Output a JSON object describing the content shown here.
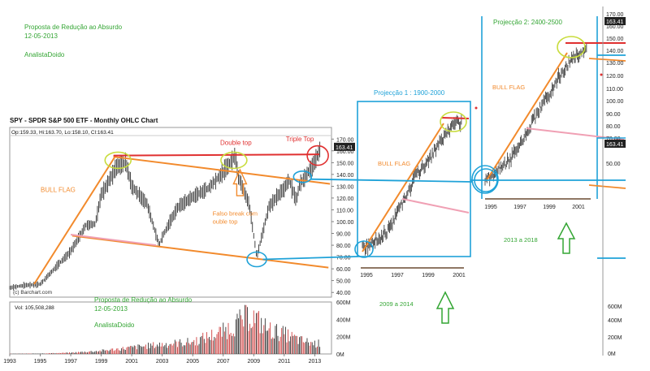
{
  "annotations_top": {
    "title_line1": "Proposta de Redução ao Absurdo",
    "title_line2": "12-05-2013",
    "author": "AnalistaDoido"
  },
  "colors": {
    "green_text": "#33a533",
    "orange": "#f28a2c",
    "red": "#e03030",
    "cyan": "#1fa2d8",
    "pink": "#f0a0b4",
    "yellow_green": "#c8dc3c",
    "price_bar": "#303030",
    "volume_up": "#d04040",
    "volume_down": "#333333"
  },
  "chart_data": [
    {
      "type": "ohlc",
      "title": "SPY - SPDR S&P 500 ETF - Monthly OHLC Chart",
      "ohlc_label": "Op:159.33, Hi:163.70, Lo:158.10, Cl:163.41",
      "last_price_tag": "163.41",
      "source": "(c) Barchart.com",
      "x_ticks": [
        "1993",
        "1995",
        "1997",
        "1999",
        "2001",
        "2003",
        "2005",
        "2007",
        "2009",
        "2011",
        "2013"
      ],
      "y_ticks": [
        40,
        50,
        60,
        70,
        80,
        90,
        100,
        110,
        120,
        130,
        140,
        150,
        160,
        170
      ],
      "y_tick_labels": [
        "40.00",
        "50.00",
        "60.00",
        "70.00",
        "80.00",
        "90.00",
        "100.00",
        "110.00",
        "120.00",
        "130.00",
        "140.00",
        "150.00",
        "160.00",
        "170.00"
      ],
      "ylim": [
        36,
        175
      ],
      "xlim": [
        1993.0,
        2014.1
      ],
      "monthly_close_approx": [
        [
          1993.0,
          44
        ],
        [
          1994.0,
          46
        ],
        [
          1995.0,
          47
        ],
        [
          1996.0,
          61
        ],
        [
          1997.0,
          75
        ],
        [
          1998.0,
          97
        ],
        [
          1998.6,
          98
        ],
        [
          1999.0,
          123
        ],
        [
          2000.0,
          146
        ],
        [
          2000.6,
          150
        ],
        [
          2001.0,
          130
        ],
        [
          2002.0,
          115
        ],
        [
          2002.8,
          80
        ],
        [
          2003.0,
          87
        ],
        [
          2004.0,
          112
        ],
        [
          2005.0,
          121
        ],
        [
          2006.0,
          128
        ],
        [
          2007.0,
          142
        ],
        [
          2007.8,
          156
        ],
        [
          2008.0,
          138
        ],
        [
          2008.7,
          115
        ],
        [
          2009.2,
          70
        ],
        [
          2010.0,
          113
        ],
        [
          2011.0,
          128
        ],
        [
          2011.3,
          136
        ],
        [
          2011.8,
          118
        ],
        [
          2012.0,
          131
        ],
        [
          2013.0,
          150
        ],
        [
          2013.4,
          163.41
        ]
      ],
      "volume": {
        "label": "Vol: 105,508,288",
        "y_tick_labels": [
          "0M",
          "200M",
          "400M",
          "600M"
        ],
        "ylim": [
          0,
          600
        ],
        "values_approx": [
          [
            1993,
            2
          ],
          [
            1995,
            5
          ],
          [
            1997,
            15
          ],
          [
            1999,
            40
          ],
          [
            2001,
            80
          ],
          [
            2003,
            120
          ],
          [
            2005,
            150
          ],
          [
            2007,
            280
          ],
          [
            2008.8,
            480
          ],
          [
            2010,
            300
          ],
          [
            2011,
            250
          ],
          [
            2012,
            170
          ],
          [
            2013,
            130
          ]
        ]
      },
      "annotations": [
        "Double top",
        "Triple Top",
        "BULL FLAG",
        "Falso break com double top"
      ],
      "overlay_text": {
        "line1": "Proposta de Redução ao Absurdo",
        "line2": "12-05-2013",
        "author": "AnalistaDoido"
      }
    },
    {
      "type": "ohlc",
      "title": "Projecção 1 :  1900-2000",
      "caption": "2009 a 2014",
      "annotation": "BULL FLAG",
      "x_ticks": [
        "1995",
        "1997",
        "1999",
        "2001"
      ]
    },
    {
      "type": "ohlc",
      "title": "Projecção 2: 2400-2500",
      "caption": "2013 a 2018",
      "annotation": "BULL FLAG",
      "x_ticks": [
        "1995",
        "1997",
        "1999",
        "2001"
      ],
      "last_price_tag": "163.41",
      "y_tick_labels": [
        "170.00",
        "160.00",
        "150.00",
        "140.00",
        "130.00",
        "120.00",
        "110.00",
        "100.00",
        "90.00",
        "80.00",
        "70.00",
        "60.00",
        "50.00"
      ],
      "volume_tick_labels": [
        "600M",
        "400M",
        "200M",
        "0M"
      ]
    }
  ]
}
